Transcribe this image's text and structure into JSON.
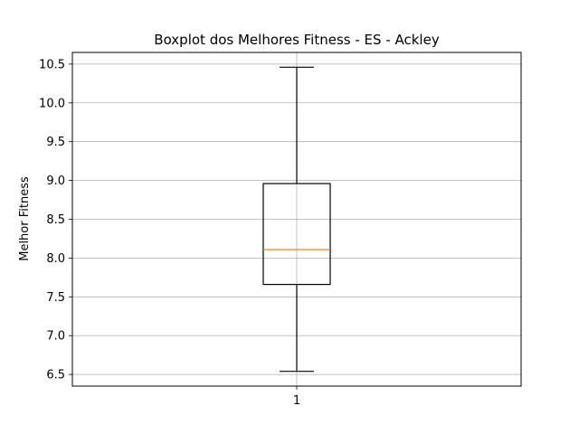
{
  "chart_data": {
    "type": "boxplot",
    "title": "Boxplot dos Melhores Fitness - ES - Ackley",
    "xlabel": "",
    "ylabel": "Melhor Fitness",
    "categories": [
      "1"
    ],
    "boxes": [
      {
        "category": "1",
        "whisker_low": 6.54,
        "q1": 7.66,
        "median": 8.11,
        "q3": 8.96,
        "whisker_high": 10.46
      }
    ],
    "yticks": [
      "6.5",
      "7.0",
      "7.5",
      "8.0",
      "8.5",
      "9.0",
      "9.5",
      "10.0",
      "10.5"
    ],
    "ylim": [
      6.35,
      10.65
    ],
    "grid": true,
    "colors": {
      "box": "#000000",
      "median": "#ff7f0e",
      "grid": "#b0b0b0"
    }
  }
}
